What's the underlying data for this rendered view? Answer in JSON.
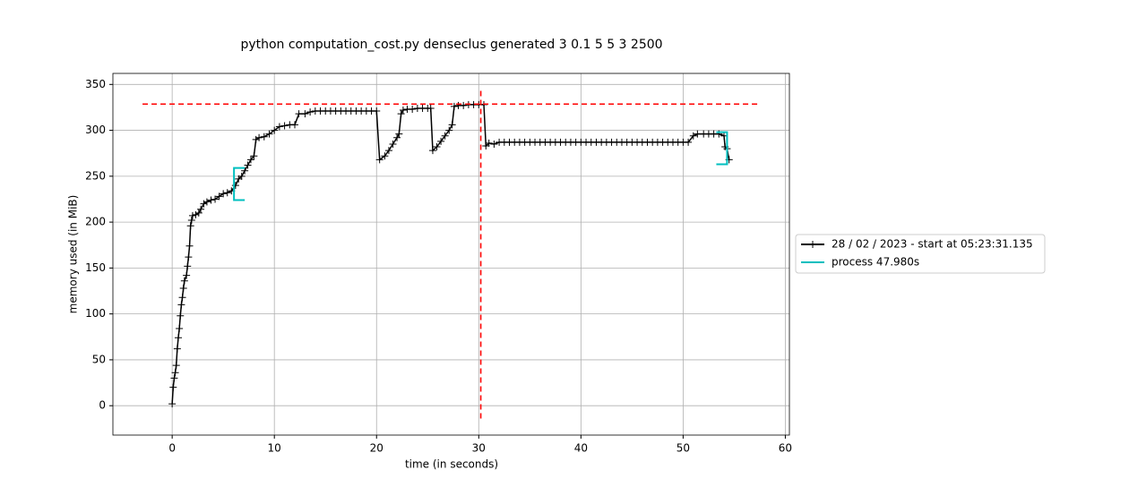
{
  "chart_data": {
    "type": "memory-profile",
    "title": "python computation_cost.py denseclus generated 3 0.1 5 5 3 2500",
    "x_label": "time (in seconds)",
    "y_label": "memory used (in MiB)",
    "xlim": [
      -5.8,
      60.4
    ],
    "ylim": [
      -32,
      362
    ],
    "xticks": [
      0,
      10,
      20,
      30,
      40,
      50,
      60
    ],
    "yticks": [
      0,
      50,
      100,
      150,
      200,
      250,
      300,
      350
    ],
    "grid": true,
    "legend": "outside-right",
    "series": [
      {
        "name": "28 / 02 / 2023 - start at 05:23:31.135",
        "color": "#000000",
        "x": [
          0,
          0.1,
          0.2,
          0.3,
          0.4,
          0.5,
          0.6,
          0.7,
          0.8,
          0.9,
          1.0,
          1.1,
          1.2,
          1.4,
          1.5,
          1.6,
          1.7,
          1.8,
          1.9,
          2.0,
          2.3,
          2.6,
          2.8,
          3.1,
          3.4,
          3.8,
          4.2,
          4.6,
          5.0,
          5.4,
          5.8,
          6.2,
          6.5,
          6.8,
          7.1,
          7.4,
          7.7,
          8.0,
          8.2,
          8.5,
          9.0,
          9.5,
          10.0,
          10.5,
          11.0,
          11.5,
          12.0,
          12.4,
          13.0,
          13.5,
          14,
          14.5,
          15,
          15.5,
          16,
          16.5,
          17,
          17.5,
          18,
          18.5,
          19,
          19.5,
          20,
          20.3,
          20.8,
          21.2,
          21.6,
          22.0,
          22.2,
          22.4,
          22.6,
          23,
          23.5,
          24,
          24.5,
          25,
          25.3,
          25.5,
          25.9,
          26.3,
          26.7,
          27.1,
          27.4,
          27.6,
          28,
          28.5,
          29,
          29.5,
          30,
          30.5,
          30.7,
          31,
          31.5,
          32,
          32.5,
          33,
          33.5,
          34,
          34.5,
          35,
          35.5,
          36,
          36.5,
          37,
          37.5,
          38,
          38.5,
          39,
          39.5,
          40,
          40.5,
          41,
          41.5,
          42,
          42.5,
          43,
          43.5,
          44,
          44.5,
          45,
          45.5,
          46,
          46.5,
          47,
          47.5,
          48,
          48.5,
          49,
          49.5,
          50,
          50.5,
          51,
          51.4,
          52,
          52.5,
          53,
          53.5,
          54,
          54.1,
          54.3,
          54.5
        ],
        "values": [
          2,
          20,
          30,
          36,
          44,
          62,
          74,
          84,
          98,
          110,
          118,
          128,
          136,
          142,
          152,
          162,
          174,
          196,
          202,
          207,
          208,
          210,
          214,
          220,
          222,
          224,
          225,
          228,
          231,
          232,
          234,
          240,
          247,
          250,
          256,
          262,
          268,
          272,
          290,
          292,
          293,
          296,
          300,
          304,
          305,
          306,
          306,
          318,
          318,
          320,
          321,
          321,
          321,
          321,
          321,
          321,
          321,
          321,
          321,
          321,
          321,
          321,
          321,
          268,
          272,
          278,
          285,
          292,
          296,
          318,
          322,
          323,
          323,
          324,
          324,
          324,
          324,
          278,
          282,
          288,
          294,
          300,
          306,
          326,
          327,
          327,
          328,
          328,
          328,
          328,
          283,
          286,
          285,
          287,
          287,
          287,
          287,
          287,
          287,
          287,
          287,
          287,
          287,
          287,
          287,
          287,
          287,
          287,
          287,
          287,
          287,
          287,
          287,
          287,
          287,
          287,
          287,
          287,
          287,
          287,
          287,
          287,
          287,
          287,
          287,
          287,
          287,
          287,
          287,
          287,
          287,
          294,
          296,
          296,
          296,
          296,
          296,
          294,
          282,
          280,
          268
        ]
      },
      {
        "name": "process 47.980s",
        "color": "#00bfbf",
        "brackets": [
          {
            "x": 6.05,
            "ymin": 224,
            "ymax": 259,
            "side": "start"
          },
          {
            "x": 54.3,
            "ymin": 263,
            "ymax": 298,
            "side": "end"
          }
        ]
      }
    ],
    "reference_lines": {
      "color": "#ff0000",
      "horizontal": {
        "y": 328.6,
        "from": -2.9,
        "to": 57.3
      },
      "vertical": {
        "x": 30.2,
        "from": -14,
        "to": 345
      }
    }
  }
}
